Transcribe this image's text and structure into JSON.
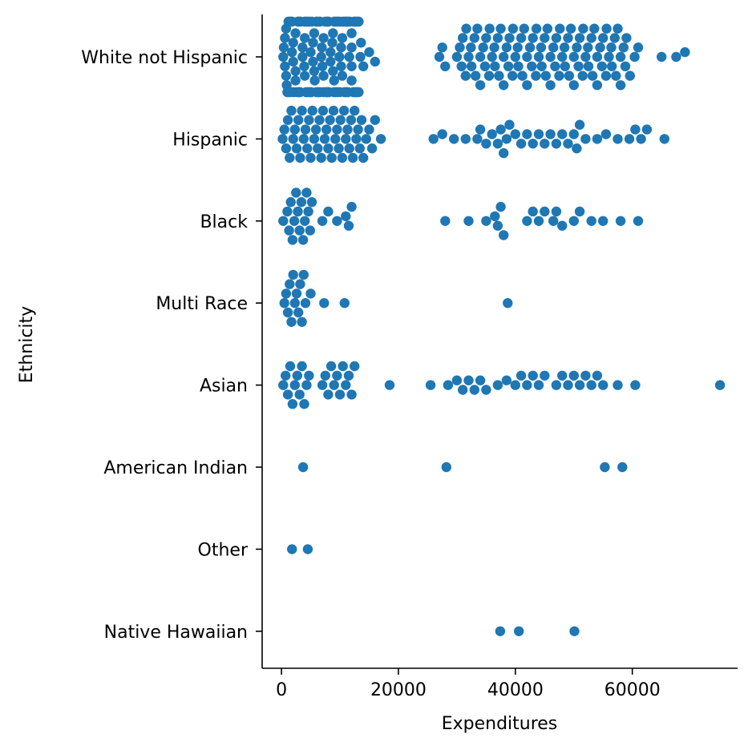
{
  "chart_data": {
    "type": "scatter",
    "subtype": "swarm",
    "xlabel": "Expenditures",
    "ylabel": "Ethnicity",
    "xlim": [
      -3300,
      78000
    ],
    "x_ticks": [
      0,
      20000,
      40000,
      60000
    ],
    "x_tick_labels": [
      "0",
      "20000",
      "40000",
      "60000"
    ],
    "categories": [
      "White not Hispanic",
      "Hispanic",
      "Black",
      "Multi Race",
      "Asian",
      "American Indian",
      "Other",
      "Native Hawaiian"
    ],
    "marker_color": "#1f77b4",
    "grid": false,
    "series": [
      {
        "category": "White not Hispanic",
        "x": [
          300,
          600,
          900,
          1200,
          1500,
          1800,
          2100,
          2400,
          2700,
          3000,
          3300,
          3600,
          3900,
          4200,
          4500,
          4800,
          5100,
          5400,
          5700,
          6000,
          6300,
          6600,
          6900,
          7200,
          7500,
          7800,
          8100,
          8400,
          8700,
          9000,
          9300,
          9600,
          9900,
          10200,
          10500,
          10800,
          11100,
          11400,
          11700,
          12000,
          12300,
          12600,
          12900,
          13200,
          13500,
          14000,
          15000,
          16000,
          400,
          800,
          1200,
          1600,
          2000,
          2400,
          2800,
          3200,
          3600,
          4000,
          4400,
          4800,
          5200,
          5600,
          6000,
          6400,
          6800,
          7200,
          7600,
          8000,
          8400,
          8800,
          9200,
          9600,
          10000,
          10400,
          10800,
          11200,
          11600,
          12000,
          12400,
          12800,
          13200,
          13600,
          800,
          1600,
          2400,
          3200,
          4000,
          4800,
          5600,
          6400,
          7200,
          8000,
          8800,
          9600,
          10400,
          11200,
          12000,
          12800,
          1000,
          2000,
          3000,
          4000,
          5000,
          6000,
          7000,
          8000,
          9000,
          10000,
          11000,
          12000,
          13000,
          600,
          1800,
          3000,
          4200,
          5400,
          6600,
          7800,
          9000,
          10200,
          11400,
          12600,
          27000,
          27500,
          28000,
          30000,
          30800,
          31600,
          32400,
          33200,
          34000,
          34800,
          35600,
          36400,
          37200,
          38000,
          38800,
          39600,
          40400,
          41200,
          42000,
          42800,
          43600,
          44400,
          45200,
          46000,
          46800,
          47600,
          48400,
          49200,
          50000,
          50800,
          51600,
          52400,
          53200,
          54000,
          54800,
          55600,
          56400,
          57200,
          58000,
          58800,
          59600,
          60400,
          61000,
          31000,
          32000,
          33000,
          34000,
          35000,
          36000,
          37000,
          38000,
          39000,
          40000,
          41000,
          42000,
          43000,
          44000,
          45000,
          46000,
          47000,
          48000,
          49000,
          50000,
          51000,
          52000,
          53000,
          54000,
          55000,
          56000,
          57000,
          58000,
          59000,
          30500,
          31500,
          32500,
          33500,
          34500,
          35500,
          36500,
          37500,
          38500,
          39500,
          40500,
          41500,
          42500,
          43500,
          44500,
          45500,
          46500,
          47500,
          48500,
          49500,
          50500,
          51500,
          52500,
          53500,
          54500,
          55500,
          56500,
          57500,
          58500,
          65000,
          67500,
          69000
        ],
        "note": "dense swarm"
      },
      {
        "category": "Hispanic",
        "x": [
          200,
          500,
          800,
          1100,
          1400,
          1700,
          2000,
          2300,
          2600,
          2900,
          3200,
          3500,
          3800,
          4100,
          4400,
          4700,
          5000,
          5300,
          5600,
          5900,
          6200,
          6500,
          6800,
          7100,
          7400,
          7700,
          8000,
          8300,
          8600,
          8900,
          9200,
          9500,
          9800,
          10100,
          10400,
          10700,
          11000,
          11300,
          11600,
          11900,
          12200,
          12500,
          12800,
          13100,
          13400,
          13700,
          14000,
          14500,
          15000,
          15500,
          16000,
          17000,
          26000,
          27500,
          29500,
          31500,
          33500,
          34000,
          35000,
          36000,
          37000,
          37500,
          38000,
          38500,
          39000,
          40000,
          41000,
          42000,
          43000,
          44000,
          45000,
          46000,
          47000,
          48000,
          49000,
          50000,
          50500,
          51000,
          52000,
          54000,
          55500,
          57500,
          59500,
          60500,
          61500,
          62500,
          65500
        ],
        "note": "dense swarm"
      },
      {
        "category": "Black",
        "x": [
          300,
          1000,
          1300,
          1600,
          1900,
          2200,
          2500,
          2800,
          3100,
          3400,
          3700,
          4000,
          4300,
          4600,
          4900,
          5200,
          7000,
          8000,
          9500,
          11000,
          11500,
          12000,
          28000,
          32000,
          35000,
          36500,
          37000,
          37500,
          38000,
          42000,
          43000,
          44000,
          45000,
          46500,
          47000,
          48000,
          50000,
          51000,
          53000,
          55000,
          58000,
          61000
        ],
        "note": "swarm"
      },
      {
        "category": "Multi Race",
        "x": [
          500,
          800,
          1100,
          1400,
          1700,
          2000,
          2300,
          2600,
          2900,
          3200,
          3500,
          3800,
          4100,
          5000,
          7300,
          10800,
          38700
        ],
        "note": "swarm"
      },
      {
        "category": "Asian",
        "x": [
          300,
          700,
          1100,
          1500,
          1900,
          2300,
          2700,
          3100,
          3500,
          3900,
          4300,
          4700,
          7000,
          7500,
          8000,
          8500,
          9000,
          9500,
          10000,
          10500,
          11000,
          11500,
          12000,
          12500,
          18500,
          25500,
          28500,
          30000,
          31000,
          32000,
          33000,
          34000,
          35000,
          37000,
          38500,
          40000,
          41000,
          42000,
          43000,
          44000,
          45000,
          47000,
          48000,
          49000,
          50000,
          51000,
          52000,
          53000,
          54000,
          55000,
          57500,
          60500,
          75000
        ],
        "note": "swarm"
      },
      {
        "category": "American Indian",
        "x": [
          3700,
          28200,
          55300,
          58300
        ]
      },
      {
        "category": "Other",
        "x": [
          1800,
          4500
        ]
      },
      {
        "category": "Native Hawaiian",
        "x": [
          37400,
          40600,
          50100
        ]
      }
    ]
  }
}
